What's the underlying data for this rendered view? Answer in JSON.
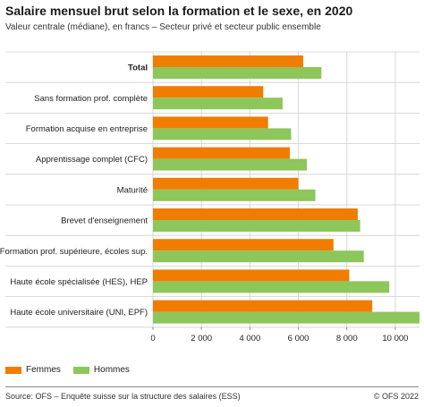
{
  "header": {
    "title": "Salaire mensuel brut selon la formation et le sexe, en 2020",
    "subtitle": "Valeur centrale (médiane), en francs – Secteur privé et secteur public ensemble"
  },
  "footer": {
    "source": "Source: OFS – Enquête suisse sur la structure des salaires (ESS)",
    "copyright": "© OFS 2022"
  },
  "colors": {
    "femmes": "#f07d00",
    "hommes": "#8dc65a",
    "grid": "#d9d9d9",
    "separator": "#cfcfcf"
  },
  "chart_data": {
    "type": "bar",
    "orientation": "horizontal",
    "categories": [
      "Total",
      "Sans formation prof. complète",
      "Formation acquise en entreprise",
      "Apprentissage complet (CFC)",
      "Maturité",
      "Brevet d'enseignement",
      "Formation prof. supérieure, écoles sup.",
      "Haute école spécialisée (HES), HEP",
      "Haute école universitaire (UNI, EPF)"
    ],
    "bold_categories": [
      "Total"
    ],
    "series": [
      {
        "name": "Femmes",
        "values": [
          6200,
          4550,
          4750,
          5650,
          6000,
          8450,
          7450,
          8100,
          9050
        ]
      },
      {
        "name": "Hommes",
        "values": [
          6950,
          5350,
          5700,
          6350,
          6700,
          8550,
          8700,
          9750,
          11000
        ]
      }
    ],
    "xlim": [
      0,
      11000
    ],
    "xticks": [
      0,
      2000,
      4000,
      6000,
      8000,
      10000
    ],
    "xtick_labels": [
      "0",
      "2 000",
      "4 000",
      "6 000",
      "8 000",
      "10 000"
    ],
    "grid": true,
    "legend_position": "bottom-left"
  }
}
